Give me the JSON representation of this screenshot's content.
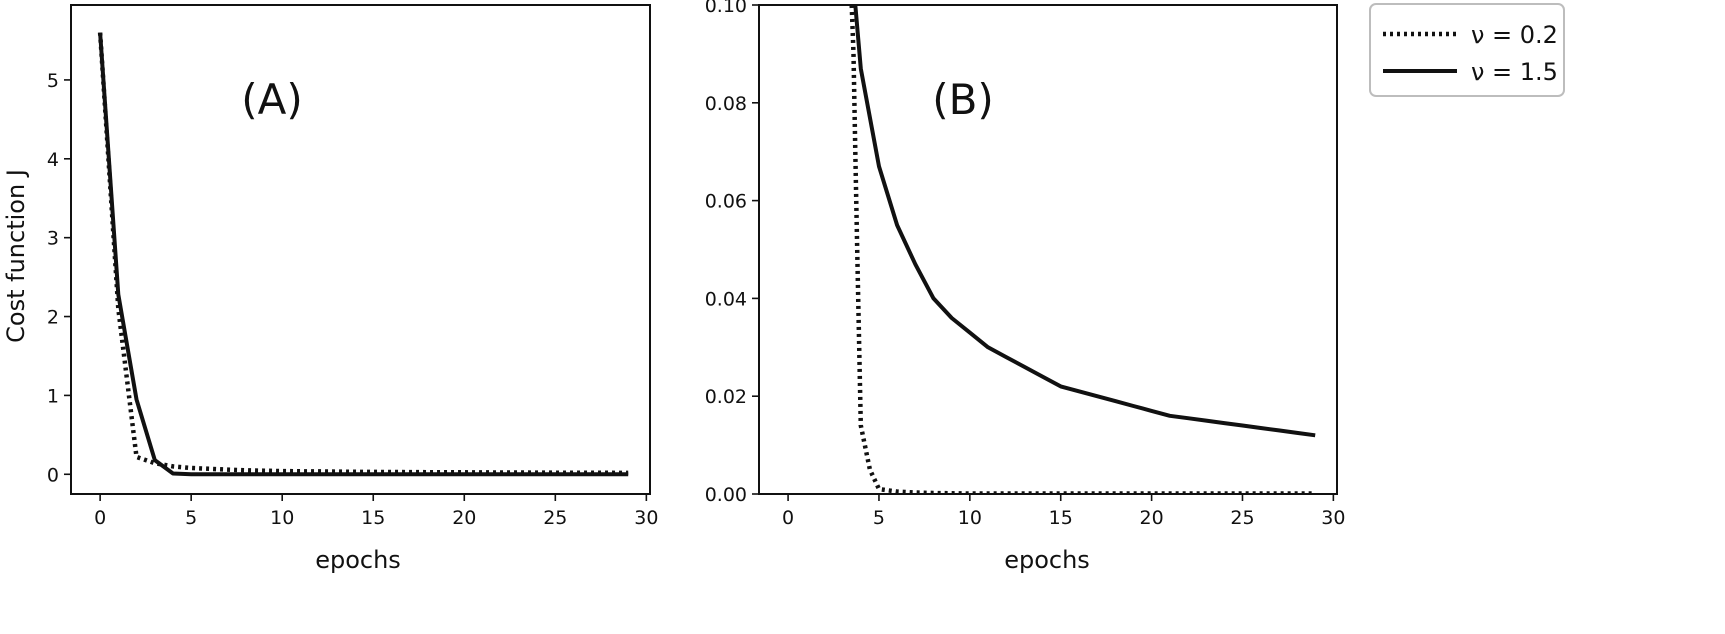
{
  "chart_data": [
    {
      "type": "line",
      "panel_label": "(A)",
      "xlabel": "epochs",
      "ylabel": "Cost function J",
      "xlim": [
        -1.6,
        30.2
      ],
      "ylim": [
        -0.25,
        5.95
      ],
      "xticks": [
        0,
        5,
        10,
        15,
        20,
        25,
        30
      ],
      "yticks": [
        0,
        1,
        2,
        3,
        4,
        5
      ],
      "grid": false,
      "series": [
        {
          "name": "ν = 0.2",
          "style": "dotted",
          "x": [
            0,
            1,
            2,
            3,
            4,
            5,
            6,
            7,
            8,
            9,
            10,
            11,
            12,
            13,
            14,
            15,
            16,
            17,
            18,
            19,
            20,
            21,
            22,
            23,
            24,
            25,
            26,
            27,
            28,
            29
          ],
          "y": [
            5.6,
            2.1,
            0.22,
            0.14,
            0.1,
            0.08,
            0.07,
            0.06,
            0.05,
            0.045,
            0.04,
            0.038,
            0.036,
            0.034,
            0.032,
            0.03,
            0.029,
            0.028,
            0.027,
            0.026,
            0.025,
            0.024,
            0.023,
            0.022,
            0.021,
            0.02,
            0.02,
            0.019,
            0.019,
            0.018
          ]
        },
        {
          "name": "ν = 1.5",
          "style": "solid",
          "x": [
            0,
            1,
            2,
            3,
            4,
            5,
            6,
            7,
            8,
            9,
            10,
            11,
            12,
            13,
            14,
            15,
            16,
            17,
            18,
            19,
            20,
            21,
            22,
            23,
            24,
            25,
            26,
            27,
            28,
            29
          ],
          "y": [
            5.6,
            2.28,
            0.95,
            0.18,
            0.01,
            0.0,
            0.0,
            0.0,
            0.0,
            0.0,
            0.0,
            0.0,
            0.0,
            0.0,
            0.0,
            0.0,
            0.0,
            0.0,
            0.0,
            0.0,
            0.0,
            0.0,
            0.0,
            0.0,
            0.0,
            0.0,
            0.0,
            0.0,
            0.0,
            0.0
          ]
        }
      ]
    },
    {
      "type": "line",
      "panel_label": "(B)",
      "xlabel": "epochs",
      "ylabel": "",
      "xlim": [
        -1.6,
        30.2
      ],
      "ylim": [
        0,
        0.1
      ],
      "xticks": [
        0,
        5,
        10,
        15,
        20,
        25,
        30
      ],
      "yticks": [
        0,
        0.02,
        0.04,
        0.06,
        0.08,
        0.1
      ],
      "ytick_labels": [
        "0.00",
        "0.02",
        "0.04",
        "0.06",
        "0.08",
        "0.10"
      ],
      "grid": false,
      "series": [
        {
          "name": "ν = 0.2",
          "style": "dotted",
          "x": [
            3.5,
            3.6,
            3.7,
            3.8,
            3.9,
            4.0,
            4.5,
            5.0,
            6.0,
            7.0,
            8.0,
            9.0,
            10.0,
            15.0,
            20.0,
            25.0,
            29.0
          ],
          "y": [
            0.1,
            0.09,
            0.07,
            0.05,
            0.032,
            0.014,
            0.005,
            0.001,
            0.0005,
            0.0003,
            0.0002,
            0.00015,
            0.0001,
            0.0001,
            0.0001,
            0.0001,
            0.0001
          ]
        },
        {
          "name": "ν = 1.5",
          "style": "solid",
          "x": [
            3.7,
            4,
            5,
            6,
            7,
            8,
            9,
            10,
            11,
            12,
            13,
            14,
            15,
            16,
            17,
            18,
            19,
            20,
            21,
            22,
            23,
            24,
            25,
            26,
            27,
            28,
            29
          ],
          "y": [
            0.1,
            0.087,
            0.067,
            0.055,
            0.047,
            0.04,
            0.036,
            0.033,
            0.03,
            0.028,
            0.026,
            0.024,
            0.022,
            0.021,
            0.02,
            0.019,
            0.018,
            0.017,
            0.016,
            0.0155,
            0.015,
            0.0145,
            0.014,
            0.0135,
            0.013,
            0.0125,
            0.012
          ]
        }
      ]
    }
  ],
  "legend": {
    "position": "upper-right-outside",
    "entries": [
      {
        "label": "ν = 0.2",
        "style": "dotted"
      },
      {
        "label": "ν = 1.5",
        "style": "solid"
      }
    ]
  },
  "colors": {
    "line": "#111111",
    "axes": "#111111",
    "legend_border": "#bdbdbd"
  }
}
